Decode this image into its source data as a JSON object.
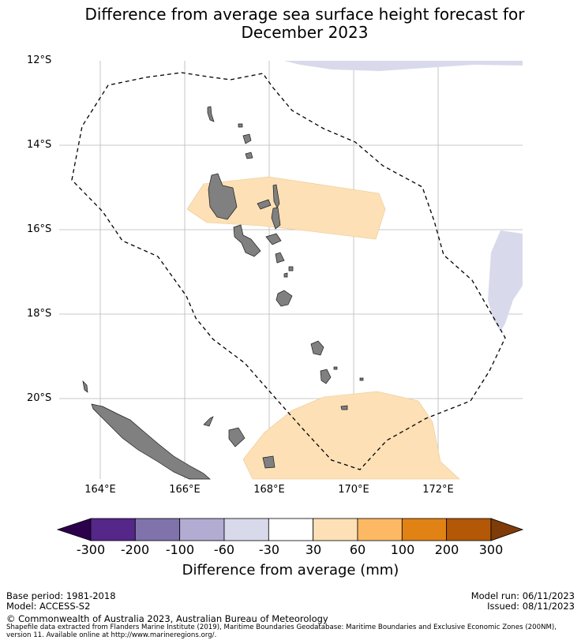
{
  "title_line1": "Difference from average sea surface height forecast for",
  "title_line2": "December 2023",
  "map": {
    "lat_labels": [
      "12°S",
      "14°S",
      "16°S",
      "18°S",
      "20°S"
    ],
    "lon_labels": [
      "164°E",
      "166°E",
      "168°E",
      "170°E",
      "172°E"
    ],
    "land_color": "#808080",
    "eez_style": "dashed"
  },
  "colorbar": {
    "ticks": [
      "-300",
      "-200",
      "-100",
      "-60",
      "-30",
      "30",
      "60",
      "100",
      "200",
      "300"
    ],
    "colors": [
      "#2d004b",
      "#542788",
      "#8073ac",
      "#b2abd2",
      "#d8daeb",
      "#ffffff",
      "#fee0b6",
      "#fdb863",
      "#e08214",
      "#b35806",
      "#7f3b08"
    ],
    "label": "Difference from average (mm)"
  },
  "meta": {
    "base_period": "Base period: 1981-2018",
    "model": "Model: ACCESS-S2",
    "model_run": "Model run: 06/11/2023",
    "issued": "Issued: 08/11/2023",
    "copyright": "© Commonwealth of Australia 2023, Australian Bureau of Meteorology",
    "shapefile": "Shapefile data extracted from Flanders Marine Institute (2019), Maritime Boundaries Geodatabase: Maritime Boundaries and Exclusive Economic Zones (200NM), version 11. Available online at http://www.marineregions.org/."
  }
}
